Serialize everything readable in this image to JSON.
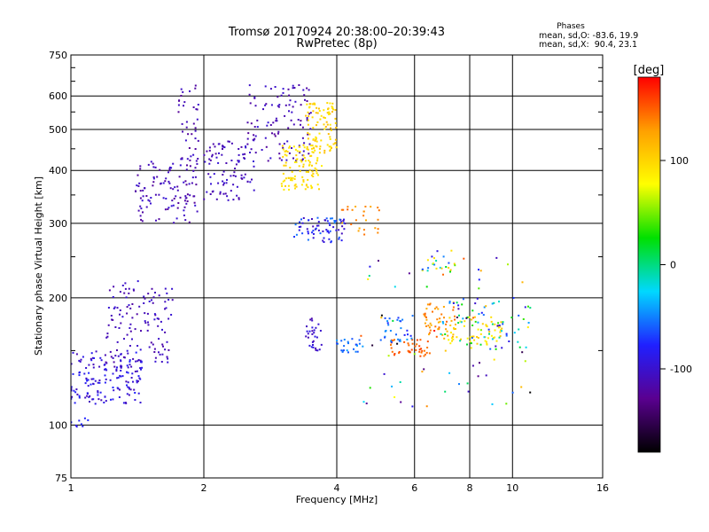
{
  "chart_data": {
    "type": "scatter",
    "title": "Tromsø 20170924 20:38:00–20:39:43",
    "subtitle": "RwPretec (8p)",
    "xlabel": "Frequency [MHz]",
    "ylabel": "Stationary phase Virtual Height [km]",
    "xscale": "log",
    "yscale": "log",
    "xlim": [
      1,
      16
    ],
    "ylim": [
      75,
      750
    ],
    "xticks": [
      1,
      2,
      4,
      6,
      8,
      10,
      16
    ],
    "yticks": [
      75,
      100,
      200,
      300,
      400,
      500,
      600,
      750
    ],
    "grid": true,
    "phase_stats": {
      "title": "Phases",
      "line1": "mean, sd,O: -83.6, 19.9",
      "line2": "mean, sd,X:  90.4, 23.1"
    },
    "colorbar": {
      "label": "[deg]",
      "ticks": [
        100,
        0,
        -100
      ],
      "range": [
        -180,
        180
      ],
      "colors": [
        "#000000",
        "#5a0090",
        "#2020ff",
        "#00d8ff",
        "#00e000",
        "#ffff00",
        "#ffa000",
        "#ff0000"
      ]
    },
    "clusters": [
      {
        "x": [
          1.0,
          1.45
        ],
        "y": [
          112,
          150
        ],
        "phase": [
          -115,
          -75
        ],
        "n": 160
      },
      {
        "x": [
          1.2,
          1.7
        ],
        "y": [
          140,
          220
        ],
        "phase": [
          -120,
          -95
        ],
        "n": 120
      },
      {
        "x": [
          1.0,
          1.1
        ],
        "y": [
          98,
          104
        ],
        "phase": [
          -90,
          -75
        ],
        "n": 8
      },
      {
        "x": [
          1.4,
          1.95
        ],
        "y": [
          300,
          420
        ],
        "phase": [
          -125,
          -95
        ],
        "n": 110
      },
      {
        "x": [
          1.75,
          1.95
        ],
        "y": [
          420,
          640
        ],
        "phase": [
          -125,
          -100
        ],
        "n": 40
      },
      {
        "x": [
          2.0,
          2.6
        ],
        "y": [
          340,
          470
        ],
        "phase": [
          -120,
          -95
        ],
        "n": 90
      },
      {
        "x": [
          2.5,
          3.5
        ],
        "y": [
          420,
          640
        ],
        "phase": [
          -125,
          -95
        ],
        "n": 110
      },
      {
        "x": [
          3.0,
          3.7
        ],
        "y": [
          360,
          460
        ],
        "phase": [
          85,
          105
        ],
        "n": 110
      },
      {
        "x": [
          3.4,
          4.0
        ],
        "y": [
          440,
          580
        ],
        "phase": [
          85,
          115
        ],
        "n": 90
      },
      {
        "x": [
          3.2,
          4.2
        ],
        "y": [
          270,
          310
        ],
        "phase": [
          -110,
          -50
        ],
        "n": 70
      },
      {
        "x": [
          4.0,
          5.0
        ],
        "y": [
          280,
          330
        ],
        "phase": [
          120,
          150
        ],
        "n": 25
      },
      {
        "x": [
          3.4,
          3.7
        ],
        "y": [
          150,
          180
        ],
        "phase": [
          -115,
          -85
        ],
        "n": 30
      },
      {
        "x": [
          3.9,
          4.6
        ],
        "y": [
          148,
          160
        ],
        "phase": [
          -70,
          -40
        ],
        "n": 25
      },
      {
        "x": [
          5.3,
          6.5
        ],
        "y": [
          145,
          160
        ],
        "phase": [
          140,
          160
        ],
        "n": 40
      },
      {
        "x": [
          5.0,
          6.0
        ],
        "y": [
          155,
          180
        ],
        "phase": [
          -80,
          -40
        ],
        "n": 30
      },
      {
        "x": [
          6.3,
          7.5
        ],
        "y": [
          160,
          195
        ],
        "phase": [
          110,
          150
        ],
        "n": 50
      },
      {
        "x": [
          7.0,
          9.5
        ],
        "y": [
          155,
          180
        ],
        "phase": [
          80,
          110
        ],
        "n": 60
      },
      {
        "x": [
          6.8,
          11.0
        ],
        "y": [
          150,
          200
        ],
        "phase": [
          -100,
          40
        ],
        "n": 60
      },
      {
        "x": [
          6.2,
          7.5
        ],
        "y": [
          230,
          260
        ],
        "phase": [
          -100,
          110
        ],
        "n": 25
      },
      {
        "x": [
          4.5,
          11.0
        ],
        "y": [
          110,
          250
        ],
        "phase": [
          -180,
          180
        ],
        "n": 70
      }
    ]
  }
}
